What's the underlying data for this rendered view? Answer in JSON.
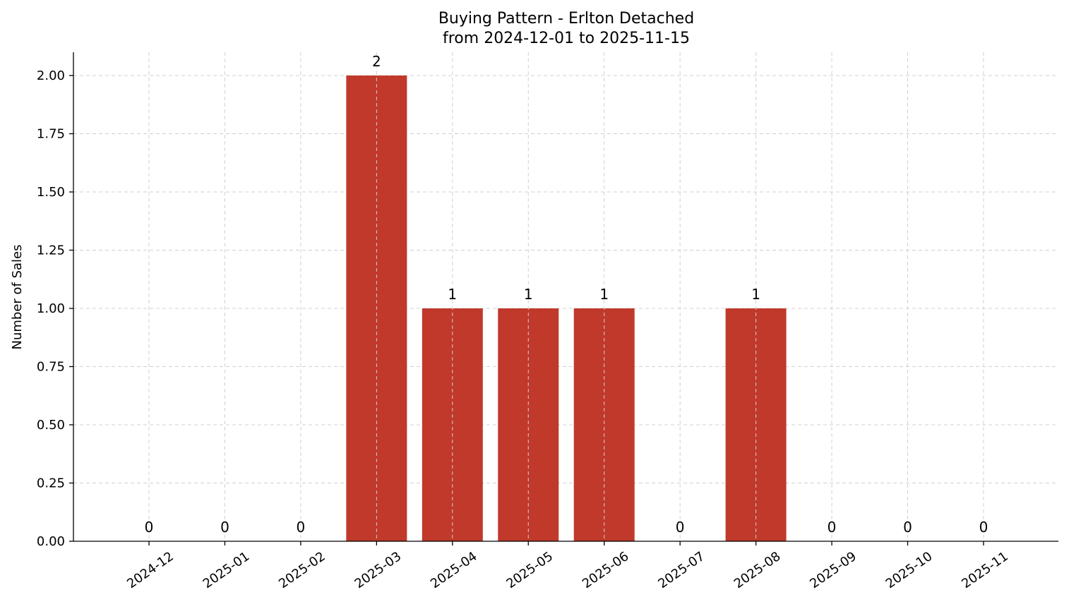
{
  "chart_data": {
    "type": "bar",
    "title_line1": "Buying Pattern - Erlton Detached",
    "title_line2": "from 2024-12-01 to 2025-11-15",
    "xlabel": "",
    "ylabel": "Number of Sales",
    "categories": [
      "2024-12",
      "2025-01",
      "2025-02",
      "2025-03",
      "2025-04",
      "2025-05",
      "2025-06",
      "2025-07",
      "2025-08",
      "2025-09",
      "2025-10",
      "2025-11"
    ],
    "values": [
      0,
      0,
      0,
      2,
      1,
      1,
      1,
      0,
      1,
      0,
      0,
      0
    ],
    "data_labels": [
      "0",
      "0",
      "0",
      "2",
      "1",
      "1",
      "1",
      "0",
      "1",
      "0",
      "0",
      "0"
    ],
    "ylim": [
      0,
      2.1
    ],
    "yticks": [
      0,
      0.25,
      0.5,
      0.75,
      1.0,
      1.25,
      1.5,
      1.75,
      2.0
    ],
    "ytick_labels": [
      "0.00",
      "0.25",
      "0.50",
      "0.75",
      "1.00",
      "1.25",
      "1.50",
      "1.75",
      "2.00"
    ],
    "bar_color": "#c0392b",
    "grid": true,
    "legend": "none"
  }
}
